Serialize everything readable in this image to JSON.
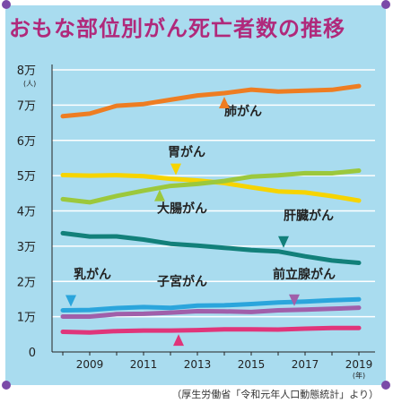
{
  "page": {
    "title": "おもな部位別がん死亡者数の推移",
    "source": "（厚生労働省「令和元年人口動態統計」より）"
  },
  "chart_data": {
    "type": "line",
    "title": "おもな部位別がん死亡者数の推移",
    "xlabel": "",
    "x_unit": "(年)",
    "ylabel": "",
    "y_unit": "(人)",
    "ylim": [
      0,
      80000
    ],
    "xlim": [
      2007.6,
      2019.6
    ],
    "x": [
      2008,
      2009,
      2010,
      2011,
      2012,
      2013,
      2014,
      2015,
      2016,
      2017,
      2018,
      2019
    ],
    "x_ticks": [
      {
        "value": 2009,
        "label": "2009"
      },
      {
        "value": 2011,
        "label": "2011"
      },
      {
        "value": 2013,
        "label": "2013"
      },
      {
        "value": 2015,
        "label": "2015"
      },
      {
        "value": 2017,
        "label": "2017"
      },
      {
        "value": 2019,
        "label": "2019"
      }
    ],
    "y_ticks": [
      {
        "value": 0,
        "label": "0"
      },
      {
        "value": 10000,
        "label": "1万"
      },
      {
        "value": 20000,
        "label": "2万"
      },
      {
        "value": 30000,
        "label": "3万"
      },
      {
        "value": 40000,
        "label": "4万"
      },
      {
        "value": 50000,
        "label": "5万"
      },
      {
        "value": 60000,
        "label": "6万"
      },
      {
        "value": 70000,
        "label": "7万"
      },
      {
        "value": 80000,
        "label": "8万"
      }
    ],
    "grid": true,
    "series": [
      {
        "name": "肺がん",
        "color": "#ee7d22",
        "label_color": "#222222",
        "values": [
          66849,
          67583,
          69813,
          70293,
          71518,
          72734,
          73396,
          74378,
          73838,
          74120,
          74328,
          75394
        ],
        "label_x": 2014,
        "label_y": 67000,
        "arrow_x": 2014,
        "arrow_dir": "up"
      },
      {
        "name": "胃がん",
        "color": "#f6d400",
        "label_color": "#222222",
        "values": [
          50160,
          50017,
          50136,
          49830,
          49129,
          48632,
          47903,
          46679,
          45531,
          45226,
          44192,
          42931
        ],
        "label_x": 2011.9,
        "label_y": 55500,
        "arrow_x": 2012.2,
        "arrow_dir": "down"
      },
      {
        "name": "大腸がん",
        "color": "#9cc83c",
        "label_color": "#222222",
        "values": [
          43325,
          42434,
          44238,
          45744,
          47089,
          47654,
          48485,
          49699,
          50099,
          50681,
          50658,
          51420
        ],
        "label_x": 2011.5,
        "label_y": 39500,
        "arrow_x": 2011.6,
        "arrow_dir": "up"
      },
      {
        "name": "肝臓がん",
        "color": "#12807a",
        "label_color": "#222222",
        "values": [
          33665,
          32725,
          32765,
          31875,
          30690,
          30175,
          29543,
          28889,
          28528,
          27114,
          25925,
          25264
        ],
        "label_x": 2016.2,
        "label_y": 37500,
        "arrow_x": 2016.2,
        "arrow_dir": "down"
      },
      {
        "name": "乳がん",
        "color": "#2ba5dc",
        "label_color": "#222222",
        "values": [
          11797,
          11918,
          12455,
          12731,
          12529,
          13148,
          13240,
          13584,
          14015,
          14285,
          14653,
          14935
        ],
        "label_x": 2008.4,
        "label_y": 20800,
        "arrow_x": 2008.3,
        "arrow_dir": "down"
      },
      {
        "name": "子宮がん",
        "color": "#e0357a",
        "label_color": "#222222",
        "values": [
          5709,
          5522,
          5930,
          6075,
          6080,
          6201,
          6429,
          6429,
          6345,
          6611,
          6800,
          6804
        ],
        "label_x": 2011.5,
        "label_y": 18800,
        "arrow_x": 2012.3,
        "arrow_dir": "up"
      },
      {
        "name": "前立腺がん",
        "color": "#a05faa",
        "label_color": "#222222",
        "values": [
          10036,
          10036,
          10722,
          10828,
          11143,
          11560,
          11507,
          11326,
          11803,
          12013,
          12250,
          12544
        ],
        "label_x": 2015.8,
        "label_y": 20800,
        "arrow_x": 2016.6,
        "arrow_dir": "down"
      }
    ]
  }
}
